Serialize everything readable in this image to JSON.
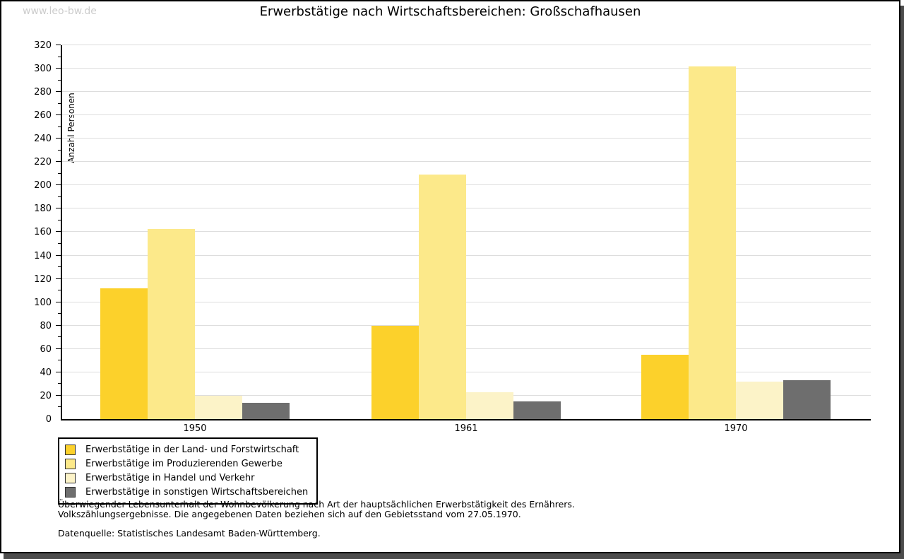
{
  "watermark": "www.leo-bw.de",
  "title": "Erwerbstätige nach Wirtschaftsbereichen: Großschafhausen",
  "chart_data": {
    "type": "bar",
    "title": "Erwerbstätige nach Wirtschaftsbereichen: Großschafhausen",
    "xlabel": "",
    "ylabel": "Anzahl Personen",
    "ylim": [
      0,
      320
    ],
    "ytick_step": 20,
    "minor_tick_step": 10,
    "grid": true,
    "legend_position": "bottom-left",
    "categories": [
      "1950",
      "1961",
      "1970"
    ],
    "series": [
      {
        "name": "Erwerbstätige in der Land- und Forstwirtschaft",
        "color": "#fcd12b",
        "values": [
          112,
          80,
          55
        ]
      },
      {
        "name": "Erwerbstätige im Produzierenden Gewerbe",
        "color": "#fce98a",
        "values": [
          163,
          209,
          302
        ]
      },
      {
        "name": "Erwerbstätige in Handel und Verkehr",
        "color": "#fcf3c8",
        "values": [
          20,
          23,
          32
        ]
      },
      {
        "name": "Erwerbstätige in sonstigen Wirtschaftsbereichen",
        "color": "#6e6e6e",
        "values": [
          14,
          15,
          33
        ]
      }
    ]
  },
  "footnotes": {
    "line1": "Überwiegender Lebensunterhalt der Wohnbevölkerung nach Art der hauptsächlichen Erwerbstätigkeit des Ernährers.",
    "line2": "Volkszählungsergebnisse. Die angegebenen Daten beziehen sich auf den Gebietsstand vom 27.05.1970.",
    "source": "Datenquelle: Statistisches Landesamt Baden-Württemberg."
  },
  "colors": {
    "grid": "#dddddd",
    "axis": "#000000",
    "shadow": "#4c4c4c",
    "watermark": "#cccccc"
  }
}
